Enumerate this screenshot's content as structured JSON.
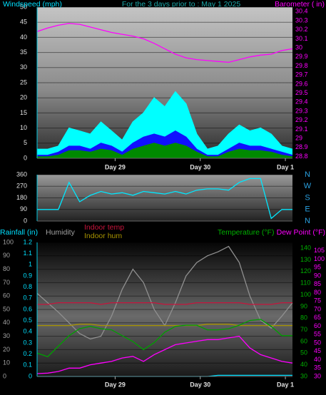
{
  "chart_data": [
    {
      "type": "line",
      "title": "For the 3 days prior to : May 1 2025",
      "ylabel": "Windspeed (mph)",
      "y2label": "Barometer ( in)",
      "x": [
        0,
        3,
        6,
        9,
        12,
        15,
        18,
        21,
        24,
        27,
        30,
        33,
        36,
        39,
        42,
        45,
        48,
        51,
        54,
        57,
        60,
        63,
        66,
        69,
        72
      ],
      "xlim": [
        0,
        72
      ],
      "xticks": [
        {
          "value": 22,
          "label": "Day 29"
        },
        {
          "value": 46,
          "label": "Day 30"
        },
        {
          "value": 70,
          "label": "Day 1"
        }
      ],
      "ylim": [
        0,
        50
      ],
      "yticks": [
        0,
        5,
        10,
        15,
        20,
        25,
        30,
        35,
        40,
        45,
        50
      ],
      "y2lim": [
        28.78,
        30.45
      ],
      "y2ticks": [
        28.8,
        28.9,
        29,
        29.1,
        29.2,
        29.3,
        29.4,
        29.5,
        29.6,
        29.7,
        29.8,
        29.9,
        30,
        30.1,
        30.2,
        30.3,
        30.4
      ],
      "grid": true,
      "series": [
        {
          "color": "#00ffff",
          "fill": true,
          "values": [
            3,
            3,
            4,
            10,
            9,
            8,
            12,
            9,
            6,
            12,
            15,
            20,
            17,
            22,
            18,
            8,
            3,
            4,
            8,
            11,
            9,
            10,
            8,
            4,
            3
          ]
        },
        {
          "color": "#1010ff",
          "fill": true,
          "values": [
            1,
            1,
            2,
            4,
            4,
            3,
            5,
            4,
            2,
            5,
            7,
            8,
            7,
            9,
            7,
            3,
            1,
            1,
            3,
            5,
            4,
            4,
            3,
            2,
            1
          ]
        },
        {
          "color": "#008a00",
          "fill": true,
          "values": [
            0.5,
            0.5,
            1,
            2.5,
            2.5,
            2,
            3,
            2.5,
            1,
            3,
            4,
            5,
            4,
            5,
            4,
            2,
            0.5,
            0.5,
            2,
            3,
            2.5,
            2.5,
            2,
            1,
            0.5
          ]
        },
        {
          "color": "#ff00ff",
          "axis": "y2",
          "values": [
            30.18,
            30.22,
            30.25,
            30.27,
            30.26,
            30.23,
            30.2,
            30.17,
            30.15,
            30.13,
            30.1,
            30.05,
            29.99,
            29.93,
            29.89,
            29.87,
            29.86,
            29.85,
            29.84,
            29.87,
            29.9,
            29.92,
            29.93,
            29.97,
            29.99
          ]
        }
      ]
    },
    {
      "type": "line",
      "x": [
        0,
        3,
        6,
        9,
        12,
        15,
        18,
        21,
        24,
        27,
        30,
        33,
        36,
        39,
        42,
        45,
        48,
        51,
        54,
        57,
        60,
        63,
        66,
        69,
        72
      ],
      "xlim": [
        0,
        72
      ],
      "ylim": [
        0,
        360
      ],
      "yticks": [
        0,
        90,
        180,
        270,
        360
      ],
      "y2lim": [
        0,
        360
      ],
      "y2ticks": [
        {
          "value": 360,
          "label": "N"
        },
        {
          "value": 270,
          "label": "W"
        },
        {
          "value": 180,
          "label": "S"
        },
        {
          "value": 90,
          "label": "E"
        },
        {
          "value": 0,
          "label": "N"
        }
      ],
      "grid": true,
      "series": [
        {
          "color": "#00e8ff",
          "values": [
            90,
            90,
            90,
            300,
            150,
            200,
            230,
            210,
            220,
            200,
            230,
            220,
            210,
            230,
            210,
            240,
            250,
            250,
            240,
            300,
            330,
            330,
            20,
            90,
            90
          ]
        }
      ]
    },
    {
      "type": "line",
      "x": [
        0,
        3,
        6,
        9,
        12,
        15,
        18,
        21,
        24,
        27,
        30,
        33,
        36,
        39,
        42,
        45,
        48,
        51,
        54,
        57,
        60,
        63,
        66,
        69,
        72
      ],
      "xlim": [
        0,
        72
      ],
      "xticks": [
        {
          "value": 22,
          "label": "Day 29"
        },
        {
          "value": 46,
          "label": "Day 30"
        },
        {
          "value": 70,
          "label": "Day 1"
        }
      ],
      "grid": true,
      "axes": [
        {
          "label": "Rainfall (in)",
          "color": "#00e0ff",
          "lim": [
            0,
            1.2
          ],
          "ticks": [
            0,
            0.1,
            0.2,
            0.3,
            0.4,
            0.5,
            0.6,
            0.7,
            0.8,
            0.9,
            1,
            1.1,
            1.2
          ]
        },
        {
          "label": "Humidity",
          "color": "#a0a0a0",
          "lim": [
            0,
            100
          ],
          "ticks": [
            0,
            10,
            20,
            30,
            40,
            50,
            60,
            70,
            80,
            90,
            100
          ]
        },
        {
          "label": "Temperature (°F)",
          "color": "#00b000",
          "lim": [
            30,
            145
          ],
          "ticks": [
            30,
            40,
            50,
            60,
            70,
            80,
            90,
            100,
            110,
            120,
            130,
            140
          ]
        },
        {
          "label": "Dew Point (°F)",
          "color": "#ff00ff",
          "lim": [
            30,
            110
          ],
          "ticks": [
            30,
            35,
            40,
            45,
            50,
            55,
            60,
            65,
            70,
            75,
            80,
            85,
            90,
            95,
            100,
            105
          ]
        }
      ],
      "series": [
        {
          "color": "#909090",
          "axis": 1,
          "values": [
            62,
            55,
            48,
            40,
            32,
            28,
            30,
            45,
            65,
            80,
            70,
            50,
            38,
            55,
            75,
            85,
            90,
            93,
            97,
            85,
            60,
            42,
            36,
            45,
            55
          ]
        },
        {
          "name": "Indoor temp",
          "color": "#c8143c",
          "axis": 3,
          "values": [
            73,
            73,
            74,
            74,
            74,
            74,
            73,
            74,
            74,
            74,
            74,
            74,
            73,
            73,
            73,
            74,
            74,
            74,
            74,
            74,
            73,
            73,
            73,
            74,
            74
          ]
        },
        {
          "name": "Indoor hum",
          "color": "#a89400",
          "axis": 1,
          "values": [
            38,
            38,
            38,
            38,
            39,
            39,
            38,
            38,
            38,
            38,
            38,
            38,
            38,
            38,
            38,
            38,
            39,
            39,
            39,
            38,
            38,
            38,
            38,
            38,
            38
          ]
        },
        {
          "color": "#00a000",
          "axis": 2,
          "values": [
            50,
            47,
            56,
            65,
            71,
            73,
            71,
            70,
            65,
            60,
            53,
            59,
            68,
            73,
            74,
            74,
            70,
            70,
            71,
            74,
            78,
            79,
            73,
            65,
            65
          ]
        },
        {
          "color": "#ff00ff",
          "axis": 3,
          "values": [
            31.7,
            32,
            33,
            35,
            35,
            37,
            38,
            39,
            41,
            42,
            39,
            43,
            46,
            49,
            50,
            51,
            52,
            52,
            53,
            54,
            47,
            43,
            41,
            39,
            38
          ]
        },
        {
          "color": "#00e0ff",
          "axis": 0,
          "values": [
            0,
            0,
            0,
            0,
            0,
            0,
            0,
            0,
            0,
            0,
            0,
            0,
            0,
            0,
            0,
            0,
            0,
            0.01,
            0.01,
            0.01,
            0.01,
            0.01,
            0.01,
            0.01,
            0.01
          ]
        }
      ]
    }
  ]
}
